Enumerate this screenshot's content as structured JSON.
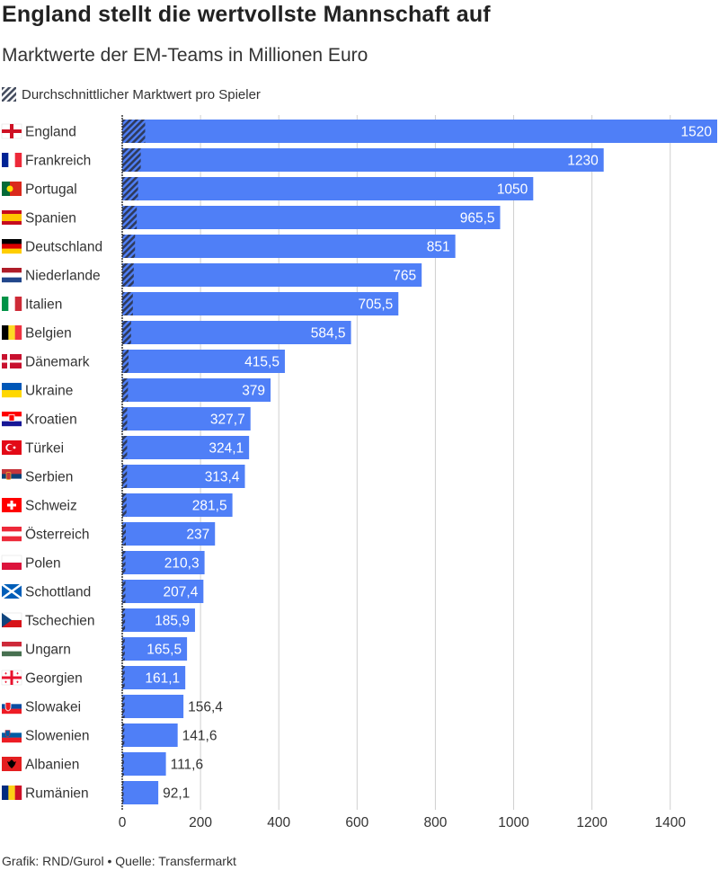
{
  "title": "England stellt die wertvollste Mannschaft auf",
  "subtitle": "Marktwerte der EM-Teams in Millionen Euro",
  "legend": {
    "label": "Durchschnittlicher Marktwert pro Spieler"
  },
  "source": "Grafik: RND/Gurol • Quelle: Transfermarkt",
  "colors": {
    "bar": "#4f7ff7",
    "hatch": "#2e3a5c",
    "axis": "#333333",
    "grid": "#cfcfcf"
  },
  "chart_data": {
    "type": "bar",
    "orientation": "horizontal",
    "xlim": [
      0,
      1520
    ],
    "xticks": [
      0,
      200,
      400,
      600,
      800,
      1000,
      1200,
      1400
    ],
    "grid": true,
    "legend_position": "top-left",
    "categories": [
      "England",
      "Frankreich",
      "Portugal",
      "Spanien",
      "Deutschland",
      "Niederlande",
      "Italien",
      "Belgien",
      "Dänemark",
      "Ukraine",
      "Kroatien",
      "Türkei",
      "Serbien",
      "Schweiz",
      "Österreich",
      "Polen",
      "Schottland",
      "Tschechien",
      "Ungarn",
      "Georgien",
      "Slowakei",
      "Slowenien",
      "Albanien",
      "Rumänien"
    ],
    "flags": [
      "flag-england-icon",
      "flag-france-icon",
      "flag-portugal-icon",
      "flag-spain-icon",
      "flag-germany-icon",
      "flag-netherlands-icon",
      "flag-italy-icon",
      "flag-belgium-icon",
      "flag-denmark-icon",
      "flag-ukraine-icon",
      "flag-croatia-icon",
      "flag-turkey-icon",
      "flag-serbia-icon",
      "flag-switzerland-icon",
      "flag-austria-icon",
      "flag-poland-icon",
      "flag-scotland-icon",
      "flag-czechia-icon",
      "flag-hungary-icon",
      "flag-georgia-icon",
      "flag-slovakia-icon",
      "flag-slovenia-icon",
      "flag-albania-icon",
      "flag-romania-icon"
    ],
    "series": [
      {
        "name": "Marktwert",
        "values": [
          1520,
          1230,
          1050,
          965.5,
          851,
          765,
          705.5,
          584.5,
          415.5,
          379,
          327.7,
          324.1,
          313.4,
          281.5,
          237,
          210.3,
          207.4,
          185.9,
          165.5,
          161.1,
          156.4,
          141.6,
          111.6,
          92.1
        ],
        "labels": [
          "1520",
          "1230",
          "1050",
          "965,5",
          "851",
          "765",
          "705,5",
          "584,5",
          "415,5",
          "379",
          "327,7",
          "324,1",
          "313,4",
          "281,5",
          "237",
          "210,3",
          "207,4",
          "185,9",
          "165,5",
          "161,1",
          "156,4",
          "141,6",
          "111,6",
          "92,1"
        ]
      },
      {
        "name": "Durchschnittlicher Marktwert pro Spieler",
        "values": [
          58.5,
          47.3,
          40.4,
          37.1,
          32.7,
          29.4,
          27.1,
          22.5,
          16.0,
          14.6,
          12.6,
          12.5,
          12.1,
          10.8,
          9.1,
          8.1,
          8.0,
          7.2,
          6.4,
          6.2,
          6.0,
          5.4,
          4.3,
          3.5
        ]
      }
    ]
  }
}
